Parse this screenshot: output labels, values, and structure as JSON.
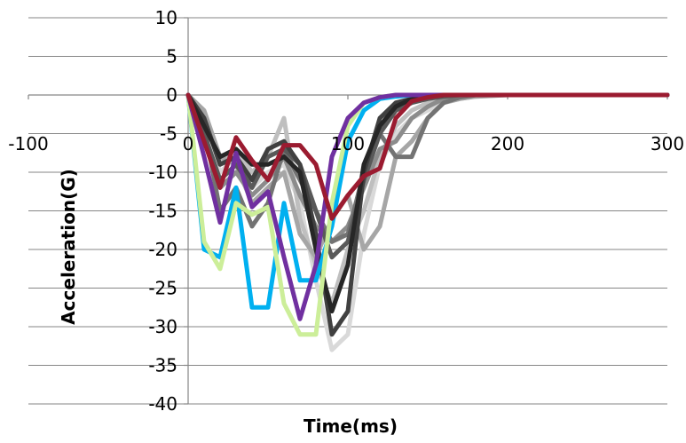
{
  "chart_data": {
    "type": "line",
    "title": "",
    "xlabel": "Time(ms)",
    "ylabel": "Acceleration(G)",
    "xlim": [
      -100,
      300
    ],
    "ylim": [
      -40,
      10
    ],
    "xticks": [
      -100,
      0,
      100,
      200,
      300
    ],
    "yticks": [
      10,
      5,
      0,
      -5,
      -10,
      -15,
      -20,
      -25,
      -30,
      -35,
      -40
    ],
    "grid": "horizontal",
    "legend": "none",
    "series": [
      {
        "color": "#d9d9d9",
        "x": [
          0,
          10,
          20,
          30,
          40,
          50,
          60,
          70,
          80,
          90,
          100,
          110,
          120,
          130,
          140,
          150,
          160,
          170,
          180,
          200,
          300
        ],
        "y": [
          0,
          -4,
          -10,
          -8,
          -12,
          -10,
          -9,
          -14,
          -24,
          -33,
          -31,
          -18,
          -9,
          -5,
          -3,
          -2,
          -1,
          -0.5,
          -0.2,
          0,
          0
        ]
      },
      {
        "color": "#bfbfbf",
        "x": [
          0,
          10,
          20,
          30,
          40,
          50,
          60,
          70,
          80,
          90,
          100,
          110,
          120,
          130,
          140,
          150,
          160,
          170,
          180,
          200,
          300
        ],
        "y": [
          0,
          -3,
          -9,
          -7,
          -10,
          -8,
          -3,
          -16,
          -22,
          -27,
          -20,
          -15,
          -8,
          -4,
          -2,
          -1,
          -0.5,
          -0.2,
          0,
          0,
          0
        ]
      },
      {
        "color": "#a6a6a6",
        "x": [
          0,
          10,
          20,
          30,
          40,
          50,
          60,
          70,
          80,
          90,
          100,
          110,
          120,
          130,
          140,
          150,
          160,
          170,
          180,
          200,
          300
        ],
        "y": [
          0,
          -2,
          -8,
          -9,
          -14,
          -12,
          -10,
          -18,
          -21,
          -16,
          -13,
          -20,
          -17,
          -8,
          -6,
          -3,
          -1,
          -0.5,
          -0.2,
          0,
          0
        ]
      },
      {
        "color": "#8c8c8c",
        "x": [
          0,
          10,
          20,
          30,
          40,
          50,
          60,
          70,
          80,
          90,
          100,
          110,
          120,
          130,
          140,
          150,
          160,
          170,
          180,
          200,
          300
        ],
        "y": [
          0,
          -5,
          -12,
          -10,
          -13,
          -11,
          -8,
          -13,
          -17,
          -19,
          -17,
          -12,
          -7,
          -6,
          -3,
          -1.5,
          -0.5,
          -0.2,
          0,
          0,
          0
        ]
      },
      {
        "color": "#737373",
        "x": [
          0,
          10,
          20,
          30,
          40,
          50,
          60,
          70,
          80,
          90,
          100,
          110,
          120,
          130,
          140,
          150,
          160,
          170,
          180,
          200,
          300
        ],
        "y": [
          0,
          -4,
          -15,
          -12,
          -17,
          -14,
          -7,
          -11,
          -15,
          -19,
          -18,
          -10,
          -5,
          -8,
          -8,
          -3,
          -1,
          -0.3,
          0,
          0,
          0
        ]
      },
      {
        "color": "#595959",
        "x": [
          0,
          10,
          20,
          30,
          40,
          50,
          60,
          70,
          80,
          90,
          100,
          110,
          120,
          130,
          140,
          150,
          160,
          170,
          180,
          200,
          300
        ],
        "y": [
          0,
          -5,
          -11,
          -9,
          -12,
          -8,
          -7,
          -9,
          -15,
          -21,
          -19,
          -11,
          -5,
          -2,
          -1,
          -0.5,
          -0.2,
          0,
          0,
          0,
          0
        ]
      },
      {
        "color": "#404040",
        "x": [
          0,
          10,
          20,
          30,
          40,
          50,
          60,
          70,
          80,
          90,
          100,
          110,
          120,
          130,
          140,
          150,
          160,
          170,
          180,
          200,
          300
        ],
        "y": [
          0,
          -3,
          -9,
          -8,
          -11,
          -7,
          -6,
          -9,
          -18,
          -31,
          -28,
          -10,
          -3,
          -1,
          -0.5,
          -0.2,
          0,
          0,
          0,
          0,
          0
        ]
      },
      {
        "color": "#262626",
        "x": [
          0,
          10,
          20,
          30,
          40,
          50,
          60,
          70,
          80,
          90,
          100,
          110,
          120,
          130,
          140,
          150,
          160,
          170,
          180,
          200,
          300
        ],
        "y": [
          0,
          -4,
          -8,
          -7,
          -9,
          -9,
          -8,
          -10,
          -20,
          -28,
          -22,
          -9,
          -4,
          -1.5,
          -0.5,
          -0.2,
          0,
          0,
          0,
          0,
          0
        ]
      },
      {
        "color": "#00b0f0",
        "x": [
          0,
          10,
          20,
          30,
          40,
          50,
          60,
          70,
          80,
          90,
          100,
          110,
          120,
          130,
          140,
          150,
          160,
          170,
          180,
          200,
          300
        ],
        "y": [
          0,
          -20,
          -21,
          -12,
          -27.5,
          -27.5,
          -14,
          -24,
          -24,
          -17,
          -6,
          -2,
          -0.5,
          -0.2,
          0,
          0,
          0,
          0,
          0,
          0,
          0
        ]
      },
      {
        "color": "#ccee99",
        "x": [
          0,
          10,
          20,
          30,
          40,
          50,
          60,
          70,
          80,
          90,
          100,
          110,
          120,
          130,
          140,
          150,
          160,
          170,
          180,
          200,
          300
        ],
        "y": [
          0,
          -19,
          -22.5,
          -14,
          -15.5,
          -14.5,
          -27,
          -31,
          -31,
          -14,
          -4,
          -1,
          -0.3,
          0,
          0,
          0,
          0,
          0,
          0,
          0,
          0
        ]
      },
      {
        "color": "#7030a0",
        "x": [
          0,
          10,
          20,
          30,
          40,
          50,
          60,
          70,
          80,
          90,
          100,
          110,
          120,
          130,
          140,
          150,
          160,
          170,
          180,
          200,
          300
        ],
        "y": [
          0,
          -8,
          -16.5,
          -7.5,
          -14.5,
          -12.5,
          -21,
          -29,
          -22,
          -8,
          -3,
          -1,
          -0.3,
          0,
          0,
          0,
          0,
          0,
          0,
          0,
          0
        ]
      },
      {
        "color": "#9b1b30",
        "x": [
          0,
          10,
          20,
          30,
          40,
          50,
          60,
          70,
          80,
          90,
          100,
          110,
          120,
          130,
          140,
          150,
          160,
          170,
          180,
          200,
          300
        ],
        "y": [
          0,
          -6,
          -12,
          -5.5,
          -8.5,
          -11,
          -6.5,
          -6.5,
          -9,
          -16,
          -13,
          -10.5,
          -9.5,
          -3,
          -0.8,
          -0.3,
          0,
          0,
          0,
          0,
          0
        ]
      }
    ]
  }
}
